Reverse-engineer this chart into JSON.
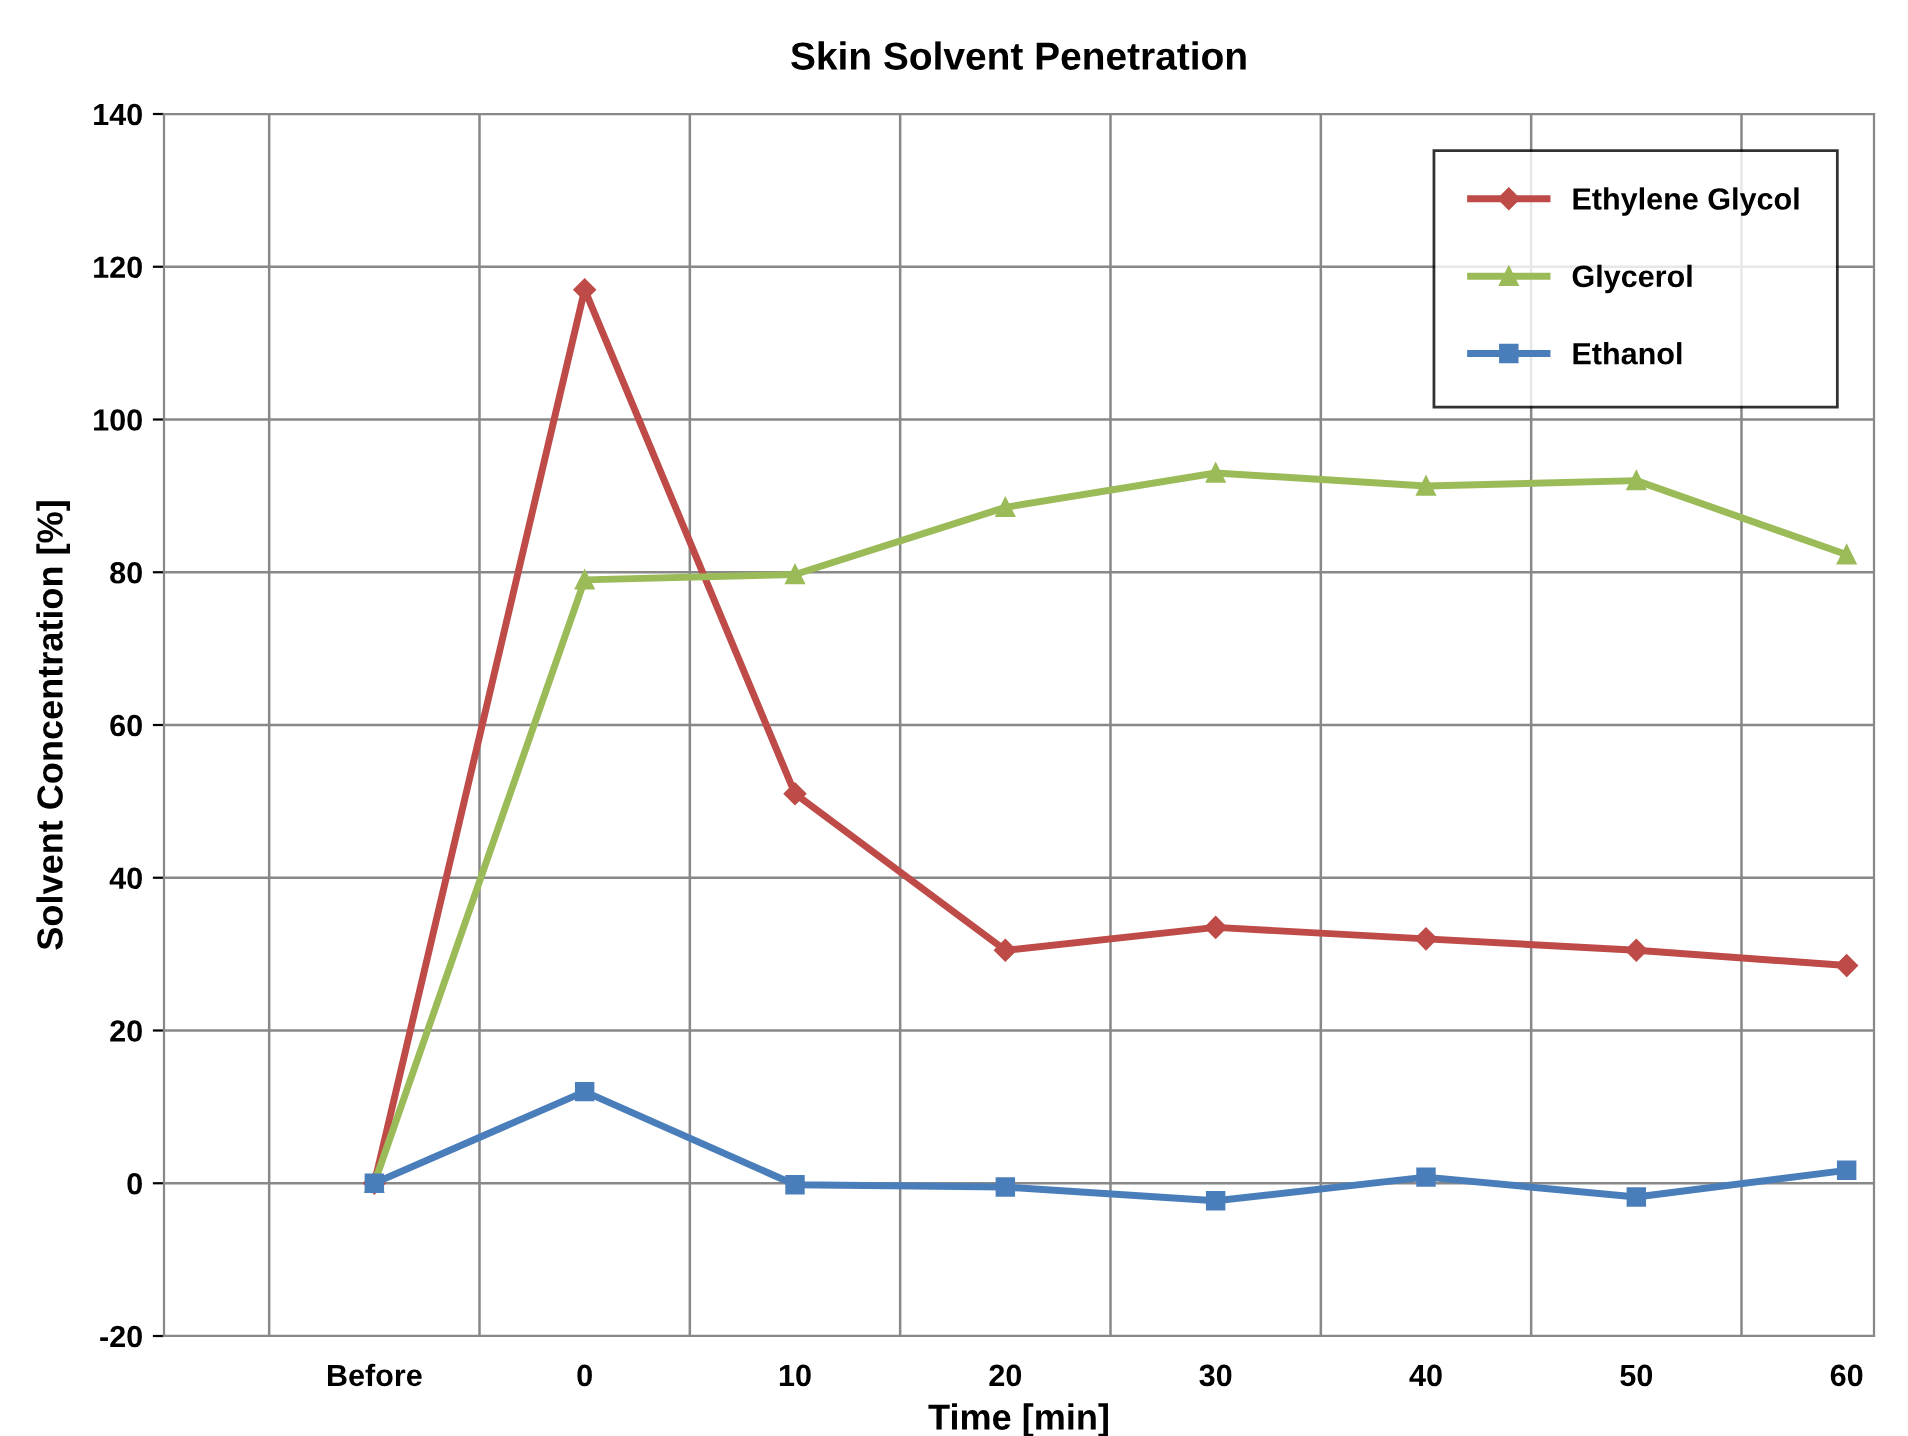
{
  "chart_data": {
    "type": "line",
    "title": "Skin Solvent Penetration",
    "xlabel": "Time [min]",
    "ylabel": "Solvent Concentration [%]",
    "categories": [
      "Before",
      "0",
      "10",
      "20",
      "30",
      "40",
      "50",
      "60"
    ],
    "series": [
      {
        "name": "Ethylene Glycol",
        "color": "#be4b48",
        "marker": "diamond",
        "values": [
          0,
          117,
          51,
          30.5,
          33.5,
          32,
          30.5,
          28.5
        ]
      },
      {
        "name": "Glycerol",
        "color": "#9bbb59",
        "marker": "triangle",
        "values": [
          0,
          79,
          79.7,
          88.5,
          93,
          91.3,
          92,
          82.3
        ]
      },
      {
        "name": "Ethanol",
        "color": "#4a7ebb",
        "marker": "square",
        "values": [
          0,
          12,
          -0.2,
          -0.5,
          -2.3,
          0.8,
          -1.8,
          1.7
        ]
      }
    ],
    "ylim": [
      -20,
      140
    ],
    "yticks": [
      -20,
      0,
      20,
      40,
      60,
      80,
      100,
      120,
      140
    ],
    "grid": true,
    "legend": "top right",
    "line_style": "solid"
  }
}
